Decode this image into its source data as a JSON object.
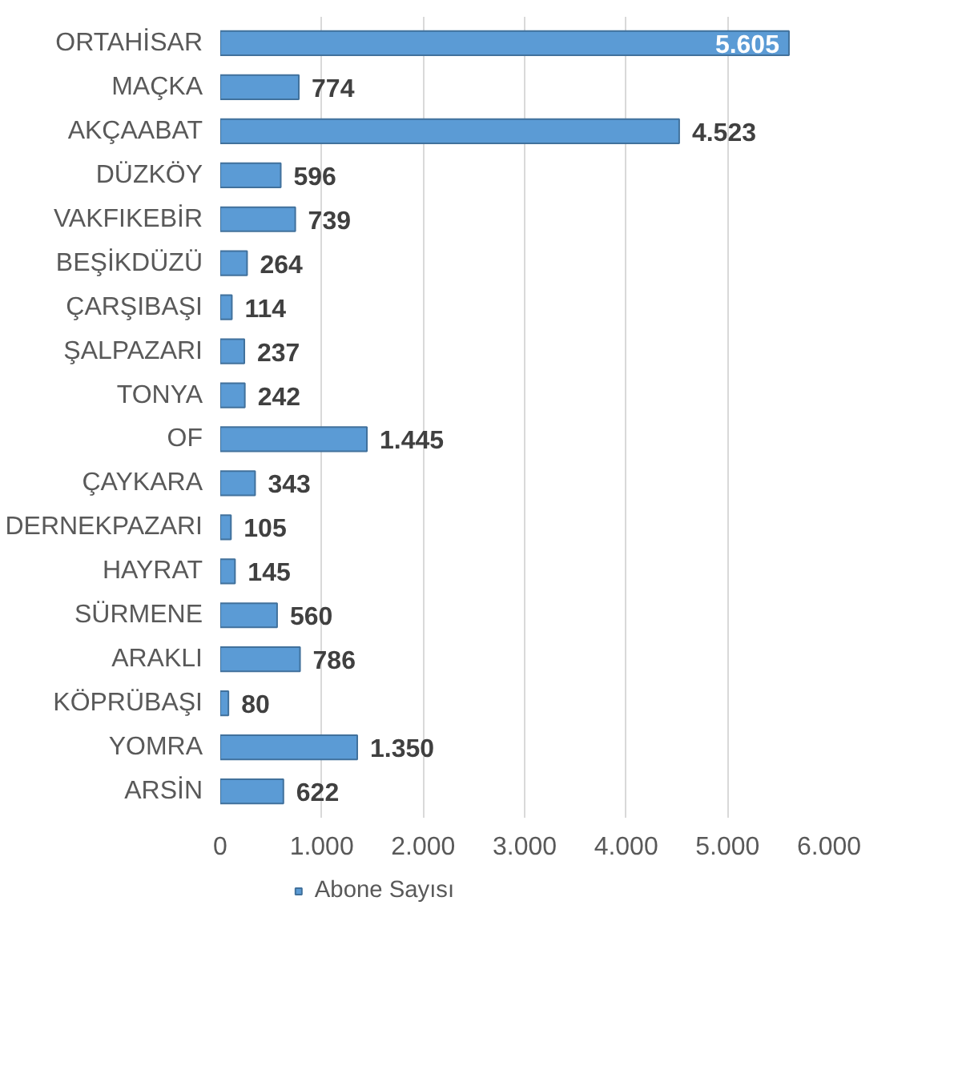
{
  "chart_data": {
    "type": "bar",
    "orientation": "horizontal",
    "categories": [
      "ORTAHİSAR",
      "MAÇKA",
      "AKÇAABAT",
      "DÜZKÖY",
      "VAKFIKEBİR",
      "BEŞİKDÜZÜ",
      "ÇARŞIBAŞI",
      "ŞALPAZARI",
      "TONYA",
      "OF",
      "ÇAYKARA",
      "DERNEKPAZARI",
      "HAYRAT",
      "SÜRMENE",
      "ARAKLI",
      "KÖPRÜBAŞI",
      "YOMRA",
      "ARSİN"
    ],
    "series": [
      {
        "name": "Abone Sayısı",
        "color": "#5b9bd5",
        "values": [
          5605,
          774,
          4523,
          596,
          739,
          264,
          114,
          237,
          242,
          1445,
          343,
          105,
          145,
          560,
          786,
          80,
          1350,
          622
        ],
        "value_labels": [
          "5.605",
          "774",
          "4.523",
          "596",
          "739",
          "264",
          "114",
          "237",
          "242",
          "1.445",
          "343",
          "105",
          "145",
          "560",
          "786",
          "80",
          "1.350",
          "622"
        ]
      }
    ],
    "xlim": [
      0,
      6000
    ],
    "xticks": [
      0,
      {
        "value": 1000,
        "label": "1.000"
      },
      {
        "value": 2000,
        "label": "2.000"
      },
      {
        "value": 3000,
        "label": "3.000"
      },
      {
        "value": 4000,
        "label": "4.000"
      },
      {
        "value": 5000,
        "label": "5.000"
      },
      {
        "value": 6000,
        "label": "6.000"
      }
    ],
    "grid": "x",
    "legend": "bottom"
  }
}
